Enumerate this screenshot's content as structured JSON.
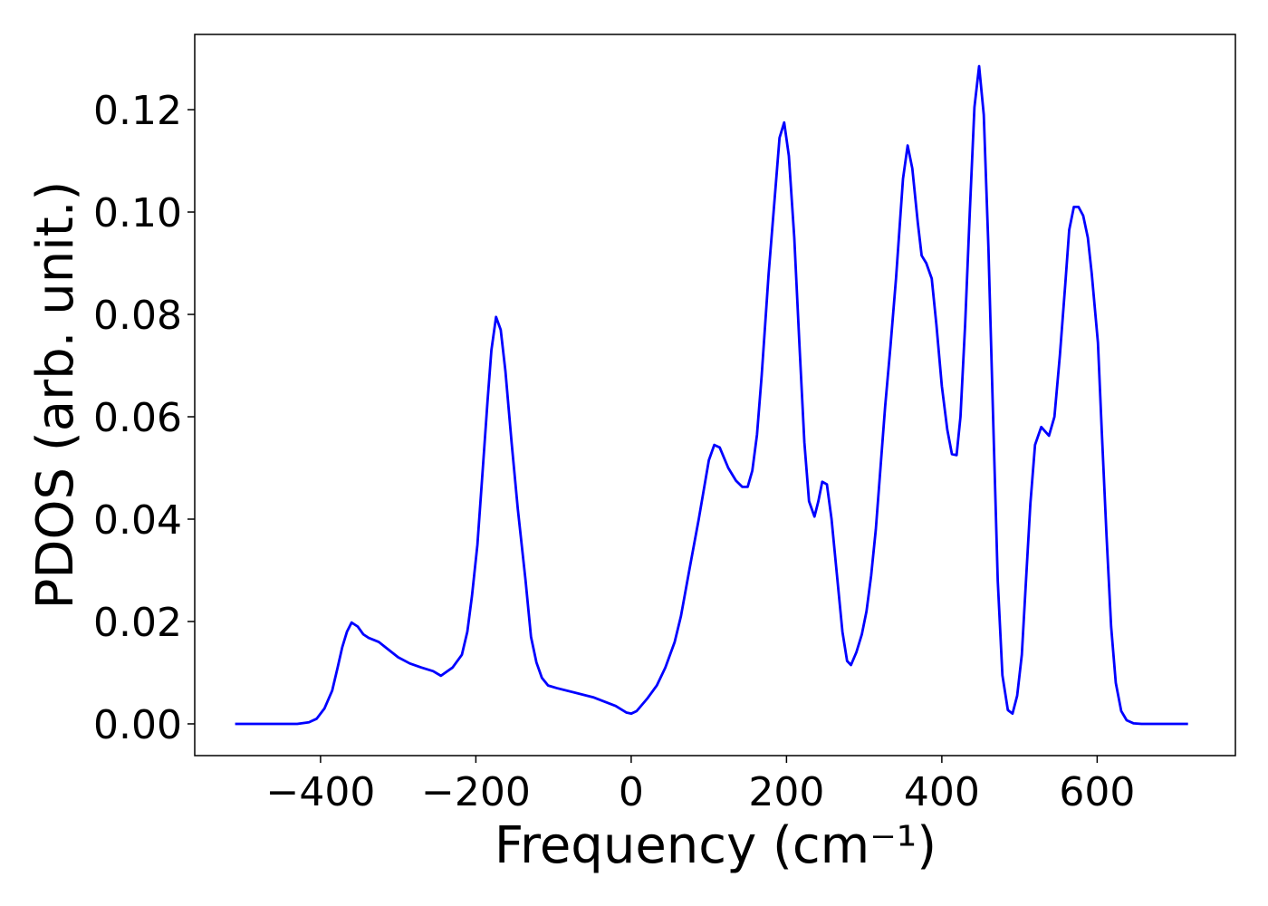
{
  "chart_data": {
    "type": "line",
    "x_label": "Frequency (cm⁻¹)",
    "y_label": "PDOS (arb. unit.)",
    "x": [
      -510,
      -430,
      -415,
      -405,
      -395,
      -385,
      -378,
      -372,
      -366,
      -360,
      -352,
      -345,
      -338,
      -325,
      -315,
      -300,
      -285,
      -270,
      -255,
      -245,
      -230,
      -218,
      -211,
      -205,
      -198,
      -191,
      -185,
      -180,
      -174,
      -168,
      -162,
      -154,
      -146,
      -136,
      -129,
      -122,
      -115,
      -107,
      -96,
      -49,
      -37,
      -20,
      -6,
      0,
      7,
      21,
      33,
      44,
      56,
      64,
      76,
      87,
      100,
      107,
      114,
      125,
      135,
      143,
      150,
      156,
      162,
      168,
      177,
      186,
      191,
      197,
      203,
      210,
      217,
      223,
      229,
      236,
      241,
      246,
      252,
      258,
      265,
      272,
      278,
      283,
      290,
      297,
      303,
      309,
      315,
      321,
      327,
      334,
      341,
      350,
      356,
      362,
      369,
      374,
      380,
      387,
      393,
      400,
      407,
      413,
      419,
      424,
      430,
      436,
      442,
      448,
      454,
      460,
      466,
      472,
      478,
      485,
      491,
      497,
      503,
      508,
      514,
      520,
      528,
      538,
      545,
      552,
      559,
      564,
      570,
      576,
      582,
      588,
      593,
      601,
      606,
      612,
      618,
      624,
      631,
      638,
      647,
      657,
      717
    ],
    "series": [
      {
        "name": "PDOS",
        "color": "#0000ff",
        "values": [
          0,
          0,
          0.0003,
          0.001,
          0.003,
          0.0065,
          0.011,
          0.015,
          0.018,
          0.0198,
          0.019,
          0.0175,
          0.0168,
          0.016,
          0.0148,
          0.013,
          0.0118,
          0.011,
          0.0103,
          0.0094,
          0.011,
          0.0135,
          0.018,
          0.025,
          0.035,
          0.05,
          0.063,
          0.073,
          0.0795,
          0.077,
          0.069,
          0.055,
          0.042,
          0.028,
          0.017,
          0.012,
          0.009,
          0.0075,
          0.007,
          0.0052,
          0.0045,
          0.0035,
          0.0022,
          0.002,
          0.0025,
          0.005,
          0.0075,
          0.011,
          0.016,
          0.021,
          0.031,
          0.04,
          0.0515,
          0.0545,
          0.054,
          0.05,
          0.0475,
          0.0463,
          0.0463,
          0.0495,
          0.0565,
          0.068,
          0.088,
          0.105,
          0.1145,
          0.1175,
          0.111,
          0.095,
          0.073,
          0.055,
          0.0435,
          0.0405,
          0.0435,
          0.0473,
          0.0468,
          0.04,
          0.029,
          0.018,
          0.0123,
          0.0115,
          0.014,
          0.0175,
          0.022,
          0.029,
          0.038,
          0.05,
          0.062,
          0.074,
          0.087,
          0.1065,
          0.113,
          0.1085,
          0.098,
          0.0915,
          0.09,
          0.087,
          0.078,
          0.066,
          0.0575,
          0.0527,
          0.0525,
          0.06,
          0.078,
          0.1,
          0.1205,
          0.1285,
          0.119,
          0.093,
          0.06,
          0.028,
          0.0095,
          0.0027,
          0.002,
          0.0055,
          0.0135,
          0.027,
          0.043,
          0.0545,
          0.058,
          0.0563,
          0.06,
          0.072,
          0.086,
          0.0965,
          0.101,
          0.101,
          0.0993,
          0.095,
          0.088,
          0.0745,
          0.057,
          0.037,
          0.019,
          0.008,
          0.0025,
          0.0007,
          0.0001,
          0,
          0
        ]
      }
    ],
    "xlim": [
      -562,
      778
    ],
    "ylim": [
      -0.0062,
      0.1347
    ],
    "xticks": [
      {
        "value": -400,
        "label": "−400"
      },
      {
        "value": -200,
        "label": "−200"
      },
      0,
      200,
      400,
      600
    ],
    "yticks": [
      {
        "value": 0,
        "label": "0.00"
      },
      {
        "value": 0.02,
        "label": "0.02"
      },
      {
        "value": 0.04,
        "label": "0.04"
      },
      {
        "value": 0.06,
        "label": "0.06"
      },
      {
        "value": 0.08,
        "label": "0.08"
      },
      {
        "value": 0.1,
        "label": "0.10"
      },
      {
        "value": 0.12,
        "label": "0.12"
      }
    ]
  }
}
